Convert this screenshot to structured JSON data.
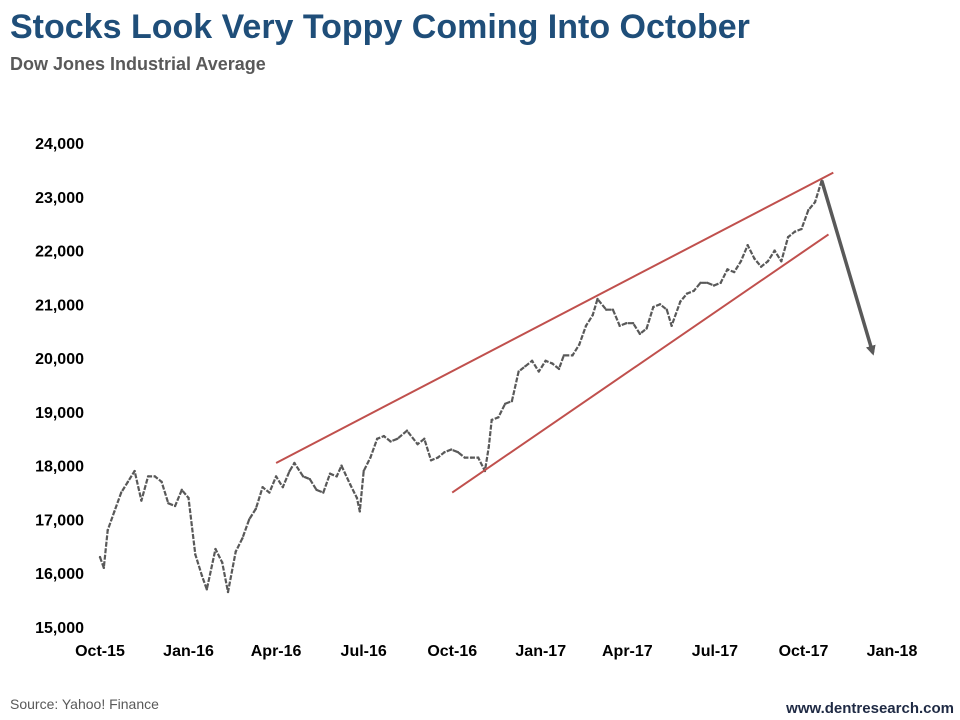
{
  "header": {
    "title": "Stocks Look Very Toppy Coming Into October",
    "subtitle": "Dow Jones Industrial  Average"
  },
  "footer": {
    "source": "Source: Yahoo! Finance",
    "website": "www.dentresearch.com"
  },
  "chart_data": {
    "type": "line",
    "title": "Stocks Look Very Toppy Coming Into October",
    "subtitle": "Dow Jones Industrial  Average",
    "xlabel": "",
    "ylabel": "",
    "ylim": [
      15000,
      24000
    ],
    "xlim": [
      "2015-10-01",
      "2018-01-01"
    ],
    "grid": false,
    "legend": "none",
    "x_ticks": [
      "Oct-15",
      "Jan-16",
      "Apr-16",
      "Jul-16",
      "Oct-16",
      "Jan-17",
      "Apr-17",
      "Jul-17",
      "Oct-17",
      "Jan-18"
    ],
    "x_tick_dates": [
      "2015-10-01",
      "2016-01-01",
      "2016-04-01",
      "2016-07-01",
      "2016-10-01",
      "2017-01-01",
      "2017-04-01",
      "2017-07-01",
      "2017-10-01",
      "2018-01-01"
    ],
    "y_ticks": [
      "15,000",
      "16,000",
      "17,000",
      "18,000",
      "19,000",
      "20,000",
      "21,000",
      "22,000",
      "23,000",
      "24,000"
    ],
    "y_tick_values": [
      15000,
      16000,
      17000,
      18000,
      19000,
      20000,
      21000,
      22000,
      23000,
      24000
    ],
    "series": [
      {
        "color": "#595959",
        "points": [
          [
            "2015-10-01",
            16300
          ],
          [
            "2015-10-05",
            16100
          ],
          [
            "2015-10-09",
            16800
          ],
          [
            "2015-10-16",
            17150
          ],
          [
            "2015-10-23",
            17500
          ],
          [
            "2015-10-30",
            17700
          ],
          [
            "2015-11-06",
            17900
          ],
          [
            "2015-11-13",
            17350
          ],
          [
            "2015-11-20",
            17800
          ],
          [
            "2015-11-27",
            17800
          ],
          [
            "2015-12-04",
            17700
          ],
          [
            "2015-12-11",
            17300
          ],
          [
            "2015-12-18",
            17250
          ],
          [
            "2015-12-25",
            17550
          ],
          [
            "2016-01-01",
            17400
          ],
          [
            "2016-01-08",
            16350
          ],
          [
            "2016-01-15",
            15950
          ],
          [
            "2016-01-20",
            15700
          ],
          [
            "2016-01-29",
            16450
          ],
          [
            "2016-02-05",
            16200
          ],
          [
            "2016-02-11",
            15650
          ],
          [
            "2016-02-19",
            16400
          ],
          [
            "2016-02-26",
            16650
          ],
          [
            "2016-03-04",
            17000
          ],
          [
            "2016-03-11",
            17200
          ],
          [
            "2016-03-18",
            17600
          ],
          [
            "2016-03-25",
            17500
          ],
          [
            "2016-04-01",
            17800
          ],
          [
            "2016-04-08",
            17600
          ],
          [
            "2016-04-15",
            17900
          ],
          [
            "2016-04-20",
            18050
          ],
          [
            "2016-04-29",
            17800
          ],
          [
            "2016-05-06",
            17750
          ],
          [
            "2016-05-13",
            17550
          ],
          [
            "2016-05-20",
            17500
          ],
          [
            "2016-05-27",
            17850
          ],
          [
            "2016-06-03",
            17800
          ],
          [
            "2016-06-08",
            18000
          ],
          [
            "2016-06-17",
            17650
          ],
          [
            "2016-06-24",
            17400
          ],
          [
            "2016-06-27",
            17150
          ],
          [
            "2016-07-01",
            17900
          ],
          [
            "2016-07-08",
            18150
          ],
          [
            "2016-07-15",
            18500
          ],
          [
            "2016-07-22",
            18550
          ],
          [
            "2016-07-29",
            18450
          ],
          [
            "2016-08-05",
            18500
          ],
          [
            "2016-08-15",
            18650
          ],
          [
            "2016-08-26",
            18400
          ],
          [
            "2016-09-02",
            18500
          ],
          [
            "2016-09-09",
            18100
          ],
          [
            "2016-09-16",
            18150
          ],
          [
            "2016-09-23",
            18250
          ],
          [
            "2016-09-30",
            18300
          ],
          [
            "2016-10-07",
            18250
          ],
          [
            "2016-10-14",
            18150
          ],
          [
            "2016-10-21",
            18150
          ],
          [
            "2016-10-28",
            18150
          ],
          [
            "2016-11-04",
            17900
          ],
          [
            "2016-11-08",
            18350
          ],
          [
            "2016-11-11",
            18850
          ],
          [
            "2016-11-18",
            18900
          ],
          [
            "2016-11-25",
            19150
          ],
          [
            "2016-12-02",
            19200
          ],
          [
            "2016-12-09",
            19750
          ],
          [
            "2016-12-16",
            19850
          ],
          [
            "2016-12-23",
            19950
          ],
          [
            "2016-12-30",
            19750
          ],
          [
            "2017-01-06",
            19950
          ],
          [
            "2017-01-13",
            19900
          ],
          [
            "2017-01-20",
            19800
          ],
          [
            "2017-01-25",
            20050
          ],
          [
            "2017-02-03",
            20050
          ],
          [
            "2017-02-10",
            20250
          ],
          [
            "2017-02-17",
            20600
          ],
          [
            "2017-02-24",
            20800
          ],
          [
            "2017-03-01",
            21100
          ],
          [
            "2017-03-10",
            20900
          ],
          [
            "2017-03-17",
            20900
          ],
          [
            "2017-03-24",
            20600
          ],
          [
            "2017-03-31",
            20650
          ],
          [
            "2017-04-07",
            20650
          ],
          [
            "2017-04-14",
            20450
          ],
          [
            "2017-04-21",
            20550
          ],
          [
            "2017-04-28",
            20950
          ],
          [
            "2017-05-05",
            21000
          ],
          [
            "2017-05-12",
            20900
          ],
          [
            "2017-05-17",
            20600
          ],
          [
            "2017-05-26",
            21050
          ],
          [
            "2017-06-02",
            21200
          ],
          [
            "2017-06-09",
            21250
          ],
          [
            "2017-06-16",
            21400
          ],
          [
            "2017-06-23",
            21400
          ],
          [
            "2017-06-30",
            21350
          ],
          [
            "2017-07-07",
            21400
          ],
          [
            "2017-07-14",
            21650
          ],
          [
            "2017-07-21",
            21600
          ],
          [
            "2017-07-28",
            21800
          ],
          [
            "2017-08-04",
            22100
          ],
          [
            "2017-08-11",
            21850
          ],
          [
            "2017-08-18",
            21700
          ],
          [
            "2017-08-25",
            21800
          ],
          [
            "2017-09-01",
            22000
          ],
          [
            "2017-09-08",
            21800
          ],
          [
            "2017-09-15",
            22250
          ],
          [
            "2017-09-22",
            22350
          ],
          [
            "2017-09-29",
            22400
          ],
          [
            "2017-10-06",
            22750
          ],
          [
            "2017-10-13",
            22900
          ],
          [
            "2017-10-20",
            23300
          ]
        ]
      }
    ],
    "annotations": [
      {
        "kind": "trendline",
        "color": "#c0504d",
        "from": [
          "2016-04-01",
          18050
        ],
        "to": [
          "2017-11-01",
          23450
        ]
      },
      {
        "kind": "trendline",
        "color": "#c0504d",
        "from": [
          "2016-10-01",
          17500
        ],
        "to": [
          "2017-10-27",
          22300
        ]
      },
      {
        "kind": "arrow",
        "color": "#595959",
        "from": [
          "2017-10-20",
          23300
        ],
        "to": [
          "2017-12-12",
          20100
        ]
      }
    ]
  }
}
